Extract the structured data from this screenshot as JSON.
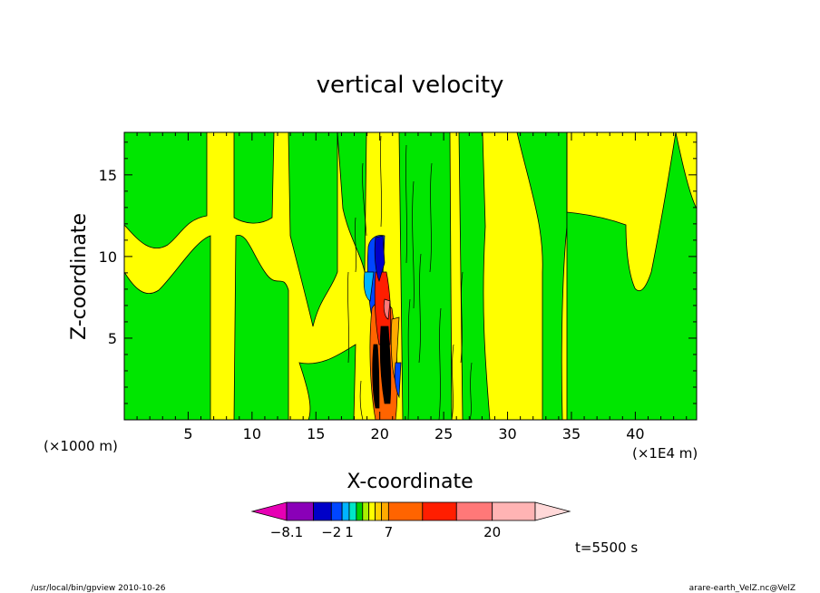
{
  "chart_data": {
    "type": "heatmap",
    "title": "vertical velocity",
    "xlabel": "X-coordinate",
    "ylabel": "Z-coordinate",
    "x_unit_left": "(×1000 m)",
    "x_unit_right": "(×1E4 m)",
    "x_ticks": [
      5,
      10,
      15,
      20,
      25,
      30,
      35,
      40
    ],
    "y_ticks": [
      5,
      10,
      15
    ],
    "xlim": [
      0,
      44.8
    ],
    "ylim": [
      0,
      17.6
    ],
    "colorbar": {
      "ticks": [
        {
          "label": "−8.1",
          "value": -8.1
        },
        {
          "label": "−2",
          "value": -2
        },
        {
          "label": "1",
          "value": 1
        },
        {
          "label": "7",
          "value": 7
        },
        {
          "label": "20",
          "value": 20
        }
      ],
      "colors": [
        "#e600b4",
        "#8a00b8",
        "#0000c8",
        "#0046ff",
        "#00b4ff",
        "#00e6c8",
        "#00d200",
        "#aaf000",
        "#ffff00",
        "#ffd200",
        "#ffaa00",
        "#ff6400",
        "#ff1e00",
        "#ff7878",
        "#ffb4b4",
        "#ffd8d8"
      ]
    },
    "field_colors": {
      "background_positive": "#ffff00",
      "near_zero": "#00e600"
    },
    "time_label": "t=5500 s",
    "footer_left": "/usr/local/bin/gpview  2010-10-26",
    "footer_right": "arare-earth_VelZ.nc@VelZ"
  }
}
